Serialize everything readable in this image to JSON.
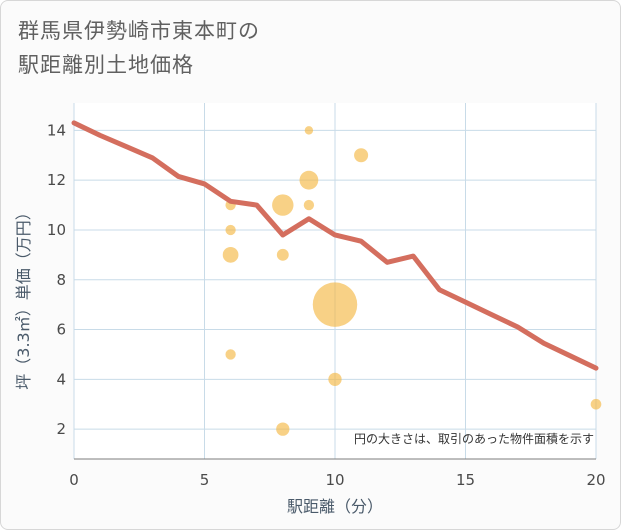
{
  "chart_data": {
    "type": "scatter",
    "title": [
      "群馬県伊勢崎市東本町の",
      "駅距離別土地価格"
    ],
    "xlabel": "駅距離（分）",
    "ylabel": "坪（3.3㎡）単価（万円）",
    "xlim": [
      0,
      20
    ],
    "ylim": [
      0.8,
      15.1
    ],
    "xticks": [
      0,
      5,
      10,
      15,
      20
    ],
    "yticks": [
      2,
      4,
      6,
      8,
      10,
      12,
      14
    ],
    "note": "円の大きさは、取引のあった物件面積を示す",
    "colors": {
      "line": "#d46e5e",
      "bubble": "#f5b945",
      "grid": "#c8dbe8"
    },
    "scatter": [
      {
        "x": 6,
        "y": 11.0,
        "size": 1.5
      },
      {
        "x": 6,
        "y": 10.0,
        "size": 1.5
      },
      {
        "x": 6,
        "y": 9.0,
        "size": 3.5
      },
      {
        "x": 6,
        "y": 5.0,
        "size": 1.5
      },
      {
        "x": 8,
        "y": 11.0,
        "size": 6.5
      },
      {
        "x": 8,
        "y": 9.0,
        "size": 2.0
      },
      {
        "x": 8,
        "y": 2.0,
        "size": 2.5
      },
      {
        "x": 9,
        "y": 14.0,
        "size": 1.0
      },
      {
        "x": 9,
        "y": 12.0,
        "size": 5.0
      },
      {
        "x": 9,
        "y": 11.0,
        "size": 1.5
      },
      {
        "x": 10,
        "y": 7.0,
        "size": 28.0
      },
      {
        "x": 10,
        "y": 4.0,
        "size": 2.5
      },
      {
        "x": 11,
        "y": 13.0,
        "size": 2.8
      },
      {
        "x": 20,
        "y": 3.0,
        "size": 1.6
      }
    ],
    "line": {
      "x": [
        0,
        1,
        2,
        3,
        4,
        5,
        6,
        7,
        8,
        9,
        10,
        11,
        12,
        13,
        14,
        15,
        16,
        17,
        18,
        19,
        20
      ],
      "y": [
        14.3,
        13.8,
        13.35,
        12.9,
        12.15,
        11.85,
        11.15,
        11.0,
        9.8,
        10.45,
        9.8,
        9.55,
        8.7,
        8.95,
        7.6,
        7.1,
        6.6,
        6.1,
        5.45,
        4.95,
        4.45
      ]
    }
  }
}
